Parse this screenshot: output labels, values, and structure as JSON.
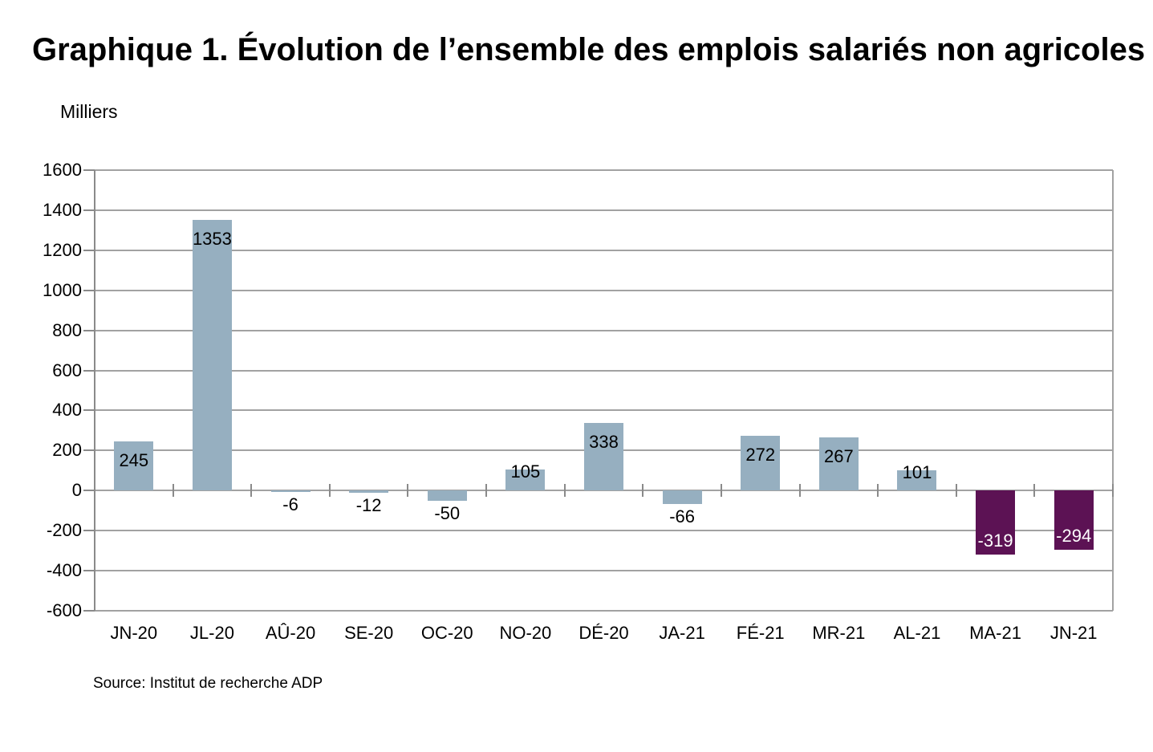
{
  "page": {
    "title": "Graphique 1. Évolution de l’ensemble des emplois salariés non agricoles",
    "unit_label": "Milliers",
    "source": "Source: Institut de recherche ADP"
  },
  "chart_data": {
    "type": "bar",
    "title": "Graphique 1. Évolution de l’ensemble des emplois salariés non agricoles",
    "xlabel": "",
    "ylabel": "Milliers",
    "categories": [
      "JN-20",
      "JL-20",
      "AÛ-20",
      "SE-20",
      "OC-20",
      "NO-20",
      "DÉ-20",
      "JA-21",
      "FÉ-21",
      "MR-21",
      "AL-21",
      "MA-21",
      "JN-21"
    ],
    "values": [
      245,
      1353,
      -6,
      -12,
      -50,
      105,
      338,
      -66,
      272,
      267,
      101,
      -319,
      -294
    ],
    "data_labels": [
      "245",
      "1353",
      "-6",
      "-12",
      "-50",
      "105",
      "338",
      "-66",
      "272",
      "267",
      "101",
      "-319",
      "-294"
    ],
    "bar_colors": [
      "#96afc0",
      "#96afc0",
      "#96afc0",
      "#96afc0",
      "#96afc0",
      "#96afc0",
      "#96afc0",
      "#96afc0",
      "#96afc0",
      "#96afc0",
      "#96afc0",
      "#5c1254",
      "#5c1254"
    ],
    "data_label_colors": [
      "#000000",
      "#000000",
      "#000000",
      "#000000",
      "#000000",
      "#000000",
      "#000000",
      "#000000",
      "#000000",
      "#000000",
      "#000000",
      "#ffffff",
      "#ffffff"
    ],
    "ylim": [
      -600,
      1600
    ],
    "ytick_step": 200,
    "ytick_labels": [
      "1600",
      "1400",
      "1200",
      "1000",
      "800",
      "600",
      "400",
      "200",
      "0",
      "-200",
      "-400",
      "-600"
    ],
    "grid": true,
    "legend": false,
    "source": "Source: Institut de recherche ADP"
  },
  "colors": {
    "bar_default": "#96afc0",
    "bar_highlight": "#5c1254",
    "gridline": "#a2a2a2",
    "axis": "#8a8a8a",
    "text": "#000000",
    "label_on_dark": "#ffffff"
  }
}
